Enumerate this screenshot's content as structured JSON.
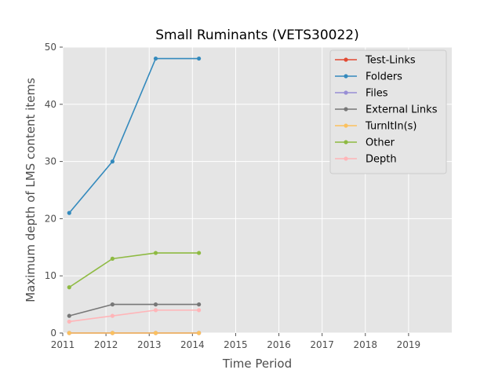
{
  "chart_data": {
    "type": "line",
    "title": "Small Ruminants (VETS30022)",
    "xlabel": "Time Period",
    "ylabel": "Maximum depth of LMS content items",
    "xlim": [
      2011,
      2020
    ],
    "ylim": [
      0,
      50
    ],
    "x_ticks": [
      "2011",
      "2012",
      "2013",
      "2014",
      "2015",
      "2016",
      "2017",
      "2018",
      "2019"
    ],
    "y_ticks": [
      "0",
      "10",
      "20",
      "30",
      "40",
      "50"
    ],
    "grid": true,
    "legend_position": "top-right",
    "x": [
      2011.15,
      2012.15,
      2013.15,
      2014.15
    ],
    "series": [
      {
        "name": "Test-Links",
        "color": "#E24A33",
        "values": [
          0,
          0,
          0,
          0
        ]
      },
      {
        "name": "Folders",
        "color": "#348ABD",
        "values": [
          21,
          30,
          48,
          48
        ]
      },
      {
        "name": "Files",
        "color": "#988ED5",
        "values": [
          0,
          0,
          0,
          0
        ]
      },
      {
        "name": "External Links",
        "color": "#777777",
        "values": [
          3,
          5,
          5,
          5
        ]
      },
      {
        "name": "TurnItIn(s)",
        "color": "#FBC15E",
        "values": [
          0,
          0,
          0,
          0
        ]
      },
      {
        "name": "Other",
        "color": "#8EBA42",
        "values": [
          8,
          13,
          14,
          14
        ]
      },
      {
        "name": "Depth",
        "color": "#FFB5B8",
        "values": [
          2,
          3,
          4,
          4
        ]
      }
    ]
  }
}
